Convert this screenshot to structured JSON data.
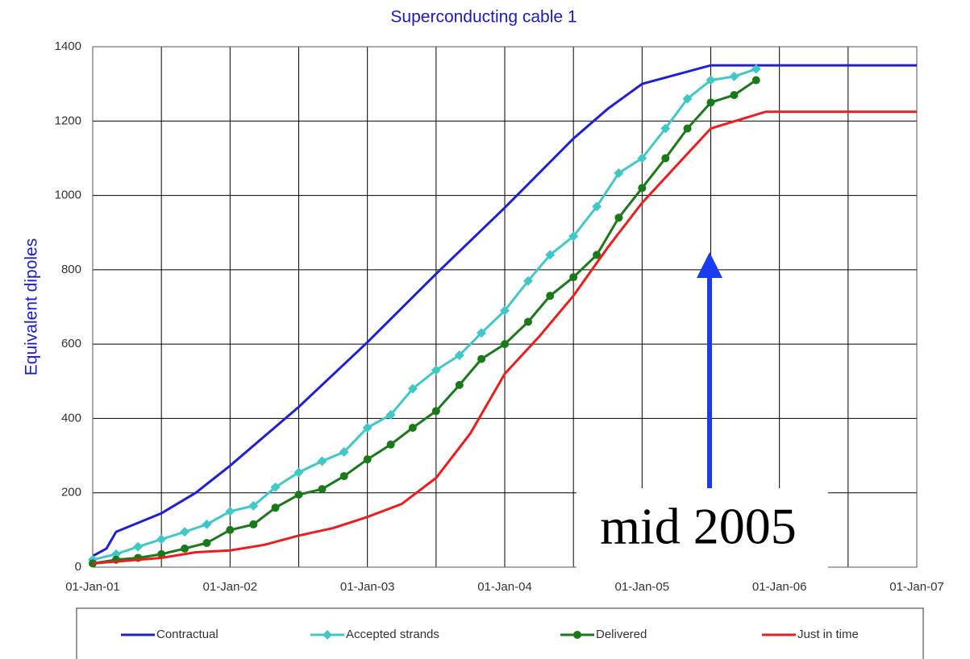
{
  "chart_data": {
    "type": "line",
    "title": "Superconducting cable 1",
    "ylabel": "Equivalent dipoles",
    "annotation": "mid 2005",
    "xlim": [
      2001,
      2007
    ],
    "xticks": [
      {
        "value": 2001,
        "label": "01-Jan-01"
      },
      {
        "value": 2002,
        "label": "01-Jan-02"
      },
      {
        "value": 2003,
        "label": "01-Jan-03"
      },
      {
        "value": 2004,
        "label": "01-Jan-04"
      },
      {
        "value": 2005,
        "label": "01-Jan-05"
      },
      {
        "value": 2006,
        "label": "01-Jan-06"
      },
      {
        "value": 2007,
        "label": "01-Jan-07"
      }
    ],
    "xminor": [
      2001.5,
      2002.5,
      2003.5,
      2004.5,
      2005.5,
      2006.5
    ],
    "ylim": [
      0,
      1400
    ],
    "yticks": [
      0,
      200,
      400,
      600,
      800,
      1000,
      1200,
      1400
    ],
    "grid": true,
    "series": [
      {
        "name": "Contractual",
        "color": "#1f1fd6",
        "marker": "none",
        "x": [
          2001,
          2001.1,
          2001.17,
          2001.5,
          2001.75,
          2002,
          2002.5,
          2003,
          2003.5,
          2004,
          2004.5,
          2004.75,
          2005,
          2005.5,
          2007
        ],
        "values": [
          30,
          50,
          95,
          145,
          200,
          273,
          431,
          605,
          789,
          967,
          1153,
          1233,
          1300,
          1350,
          1350
        ]
      },
      {
        "name": "Accepted strands",
        "color": "#40c8c8",
        "marker": "diamond",
        "x": [
          2001,
          2001.17,
          2001.33,
          2001.5,
          2001.67,
          2001.83,
          2002,
          2002.17,
          2002.33,
          2002.5,
          2002.67,
          2002.83,
          2003,
          2003.17,
          2003.33,
          2003.5,
          2003.67,
          2003.83,
          2004,
          2004.17,
          2004.33,
          2004.5,
          2004.67,
          2004.83,
          2005,
          2005.17,
          2005.33,
          2005.5,
          2005.67,
          2005.83
        ],
        "values": [
          20,
          35,
          55,
          75,
          95,
          115,
          150,
          165,
          215,
          255,
          285,
          310,
          375,
          410,
          480,
          530,
          570,
          630,
          690,
          770,
          840,
          890,
          970,
          1060,
          1100,
          1180,
          1260,
          1310,
          1320,
          1340
        ]
      },
      {
        "name": "Delivered",
        "color": "#1a7a1a",
        "marker": "circle",
        "x": [
          2001,
          2001.17,
          2001.33,
          2001.5,
          2001.67,
          2001.83,
          2002,
          2002.17,
          2002.33,
          2002.5,
          2002.67,
          2002.83,
          2003,
          2003.17,
          2003.33,
          2003.5,
          2003.67,
          2003.83,
          2004,
          2004.17,
          2004.33,
          2004.5,
          2004.67,
          2004.83,
          2005,
          2005.17,
          2005.33,
          2005.5,
          2005.67,
          2005.83
        ],
        "values": [
          10,
          20,
          25,
          35,
          50,
          65,
          100,
          115,
          160,
          195,
          210,
          245,
          290,
          330,
          375,
          420,
          490,
          560,
          600,
          660,
          730,
          780,
          840,
          940,
          1020,
          1100,
          1180,
          1250,
          1270,
          1310
        ]
      },
      {
        "name": "Just in time",
        "color": "#ee1c1c",
        "marker": "none",
        "x": [
          2001,
          2001.5,
          2001.75,
          2002,
          2002.25,
          2002.5,
          2002.75,
          2003,
          2003.25,
          2003.5,
          2003.75,
          2004,
          2004.25,
          2004.5,
          2004.75,
          2005,
          2005.25,
          2005.5,
          2005.9,
          2007
        ],
        "values": [
          10,
          25,
          40,
          45,
          60,
          85,
          105,
          135,
          170,
          240,
          360,
          520,
          620,
          730,
          860,
          980,
          1080,
          1180,
          1225,
          1225
        ]
      }
    ]
  }
}
